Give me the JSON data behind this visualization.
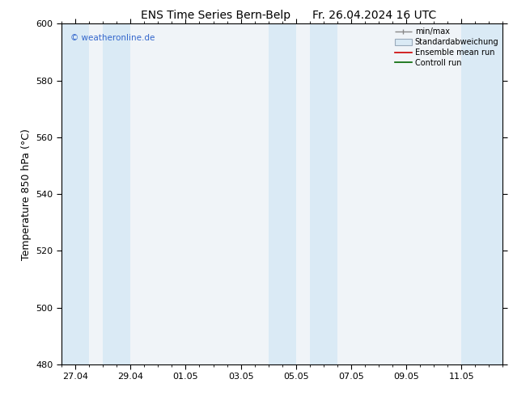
{
  "title_left": "ENS Time Series Bern-Belp",
  "title_right": "Fr. 26.04.2024 16 UTC",
  "ylabel": "Temperature 850 hPa (°C)",
  "ylim": [
    480,
    600
  ],
  "yticks": [
    480,
    500,
    520,
    540,
    560,
    580,
    600
  ],
  "xtick_labels": [
    "27.04",
    "29.04",
    "01.05",
    "03.05",
    "05.05",
    "07.05",
    "09.05",
    "11.05"
  ],
  "xtick_positions_days": [
    0.5,
    2.5,
    4.5,
    6.5,
    8.5,
    10.5,
    12.5,
    14.5
  ],
  "xlim": [
    0,
    16
  ],
  "shaded_bands": [
    {
      "start": 0.0,
      "end": 1.0
    },
    {
      "start": 1.5,
      "end": 2.5
    },
    {
      "start": 7.5,
      "end": 8.5
    },
    {
      "start": 9.0,
      "end": 10.0
    },
    {
      "start": 14.5,
      "end": 15.5
    },
    {
      "start": 15.5,
      "end": 16.0
    }
  ],
  "shade_color": "#daeaf5",
  "plot_bg_color": "#f0f4f8",
  "background_color": "#ffffff",
  "watermark": "© weatheronline.de",
  "watermark_color": "#3366cc",
  "legend_items": [
    {
      "label": "min/max",
      "type": "errorbar"
    },
    {
      "label": "Standardabweichung",
      "type": "box"
    },
    {
      "label": "Ensemble mean run",
      "color": "#ff0000",
      "type": "line"
    },
    {
      "label": "Controll run",
      "color": "#008800",
      "type": "line"
    }
  ],
  "title_fontsize": 10,
  "axis_fontsize": 9,
  "tick_fontsize": 8
}
